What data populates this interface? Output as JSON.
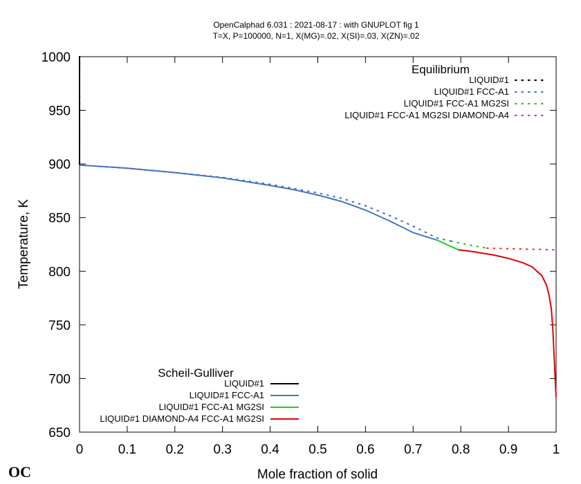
{
  "chart_data": {
    "type": "line",
    "title": "OpenCalphad    6.031 :  2021-08-17 : with GNUPLOT fig 1",
    "subtitle": "T=X,  P=100000, N=1, X(MG)=.02, X(SI)=.03, X(ZN)=.02",
    "xlabel": "Mole fraction of solid",
    "ylabel": "Temperature, K",
    "xlim": [
      0,
      1
    ],
    "ylim": [
      650,
      1000
    ],
    "xticks": [
      "0",
      "0.1",
      "0.2",
      "0.3",
      "0.4",
      "0.5",
      "0.6",
      "0.7",
      "0.8",
      "0.9",
      "1"
    ],
    "xtick_values": [
      0,
      0.1,
      0.2,
      0.3,
      0.4,
      0.5,
      0.6,
      0.7,
      0.8,
      0.9,
      1
    ],
    "yticks": [
      "650",
      "700",
      "750",
      "800",
      "850",
      "900",
      "950",
      "1000"
    ],
    "ytick_values": [
      650,
      700,
      750,
      800,
      850,
      900,
      950,
      1000
    ],
    "grid": false,
    "legends": [
      {
        "title": "Equilibrium",
        "placement": "top-right",
        "style": "dotted",
        "entries": [
          {
            "label": "LIQUID#1",
            "color": "#000000"
          },
          {
            "label": "LIQUID#1 FCC-A1",
            "color": "#4472c4"
          },
          {
            "label": "LIQUID#1 FCC-A1 MG2SI",
            "color": "#22cc22"
          },
          {
            "label": "LIQUID#1 FCC-A1 MG2SI DIAMOND-A4",
            "color": "#ff3333"
          }
        ]
      },
      {
        "title": "Scheil-Gulliver",
        "placement": "bottom-left",
        "style": "solid",
        "entries": [
          {
            "label": "LIQUID#1",
            "color": "#000000"
          },
          {
            "label": "LIQUID#1 FCC-A1",
            "color": "#4472c4"
          },
          {
            "label": "LIQUID#1 FCC-A1 MG2SI",
            "color": "#22cc22"
          },
          {
            "label": "LIQUID#1 DIAMOND-A4 FCC-A1 MG2SI",
            "color": "#e00000"
          }
        ]
      }
    ],
    "series": [
      {
        "group": "Equilibrium",
        "name": "LIQUID#1",
        "style": "dotted",
        "color": "#000000",
        "x": [
          0,
          0,
          0
        ],
        "y": [
          1000,
          950,
          899
        ]
      },
      {
        "group": "Equilibrium",
        "name": "LIQUID#1 FCC-A1",
        "style": "dotted",
        "color": "#4472c4",
        "x": [
          0,
          0.1,
          0.2,
          0.3,
          0.4,
          0.5,
          0.55,
          0.6,
          0.65,
          0.7,
          0.75,
          0.78
        ],
        "y": [
          899,
          896,
          892,
          887.5,
          881,
          873,
          868,
          861,
          852,
          842,
          831,
          828
        ]
      },
      {
        "group": "Equilibrium",
        "name": "LIQUID#1 FCC-A1 MG2SI",
        "style": "dotted",
        "color": "#22cc22",
        "x": [
          0.78,
          0.8,
          0.83,
          0.855
        ],
        "y": [
          828,
          826,
          823.5,
          821.5
        ]
      },
      {
        "group": "Equilibrium",
        "name": "LIQUID#1 FCC-A1 MG2SI DIAMOND-A4",
        "style": "dotted",
        "color": "#ff3333",
        "x": [
          0.855,
          0.9,
          0.95,
          1.0
        ],
        "y": [
          821.5,
          821,
          820.5,
          820
        ]
      },
      {
        "group": "Scheil-Gulliver",
        "name": "LIQUID#1",
        "style": "solid",
        "color": "#000000",
        "x": [
          0,
          0
        ],
        "y": [
          1000,
          899
        ]
      },
      {
        "group": "Scheil-Gulliver",
        "name": "LIQUID#1 FCC-A1",
        "style": "solid",
        "color": "#4472c4",
        "x": [
          0,
          0.1,
          0.2,
          0.3,
          0.4,
          0.45,
          0.5,
          0.55,
          0.6,
          0.65,
          0.7,
          0.75
        ],
        "y": [
          899,
          896,
          892,
          887,
          880,
          876,
          871,
          865,
          857,
          847,
          836,
          829
        ]
      },
      {
        "group": "Scheil-Gulliver",
        "name": "LIQUID#1 FCC-A1 MG2SI",
        "style": "solid",
        "color": "#22cc22",
        "x": [
          0.75,
          0.77,
          0.795
        ],
        "y": [
          829,
          825,
          820
        ]
      },
      {
        "group": "Scheil-Gulliver",
        "name": "LIQUID#1 DIAMOND-A4 FCC-A1 MG2SI",
        "style": "solid",
        "color": "#e00000",
        "x": [
          0.795,
          0.83,
          0.87,
          0.9,
          0.93,
          0.95,
          0.97,
          0.98,
          0.985,
          0.99,
          0.993,
          0.996,
          0.998,
          1.0
        ],
        "y": [
          820,
          818,
          815,
          812,
          808,
          804,
          796,
          787,
          778,
          765,
          747,
          720,
          700,
          683
        ]
      }
    ]
  },
  "logo_text": "OC"
}
